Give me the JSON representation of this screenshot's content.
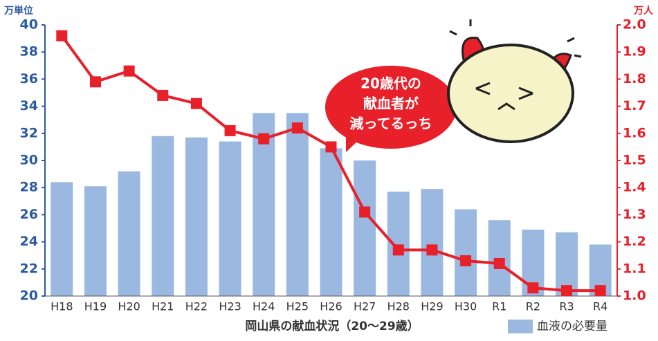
{
  "chart_data": {
    "type": "bar_line",
    "y_unit": "万単位",
    "y2_unit": "万人",
    "x_label": "岡山県の献血状況（20～29歳）",
    "categories": [
      "H18",
      "H19",
      "H20",
      "H21",
      "H22",
      "H23",
      "H24",
      "H25",
      "H26",
      "H27",
      "H28",
      "H29",
      "H30",
      "R1",
      "R2",
      "R3",
      "R4"
    ],
    "series": [
      {
        "name": "血液の必要量",
        "type": "bar",
        "color": "#9bb8e0",
        "values": [
          28.4,
          28.1,
          29.2,
          31.8,
          31.7,
          31.4,
          33.5,
          33.5,
          30.9,
          30.0,
          27.7,
          27.9,
          26.4,
          25.6,
          24.9,
          24.7,
          23.8
        ]
      },
      {
        "type": "line",
        "axis": "y2",
        "color": "#e8202a",
        "values": [
          1.96,
          1.79,
          1.83,
          1.74,
          1.71,
          1.61,
          1.58,
          1.62,
          1.55,
          1.31,
          1.17,
          1.17,
          1.13,
          1.12,
          1.03,
          1.02,
          1.02
        ]
      }
    ],
    "ylim": [
      20,
      40
    ],
    "yticks": [
      20,
      22,
      24,
      26,
      28,
      30,
      32,
      34,
      36,
      38,
      40
    ],
    "y2lim": [
      1,
      2
    ],
    "y2ticks": [
      {
        "value": 1,
        "label": "1.0"
      },
      1.1,
      1.2,
      1.3,
      1.4,
      1.5,
      1.6,
      1.7,
      1.8,
      1.9,
      {
        "value": 2,
        "label": "2.0"
      }
    ],
    "annotation": [
      "20歳代の",
      "献血者が",
      "減ってるっち"
    ]
  }
}
